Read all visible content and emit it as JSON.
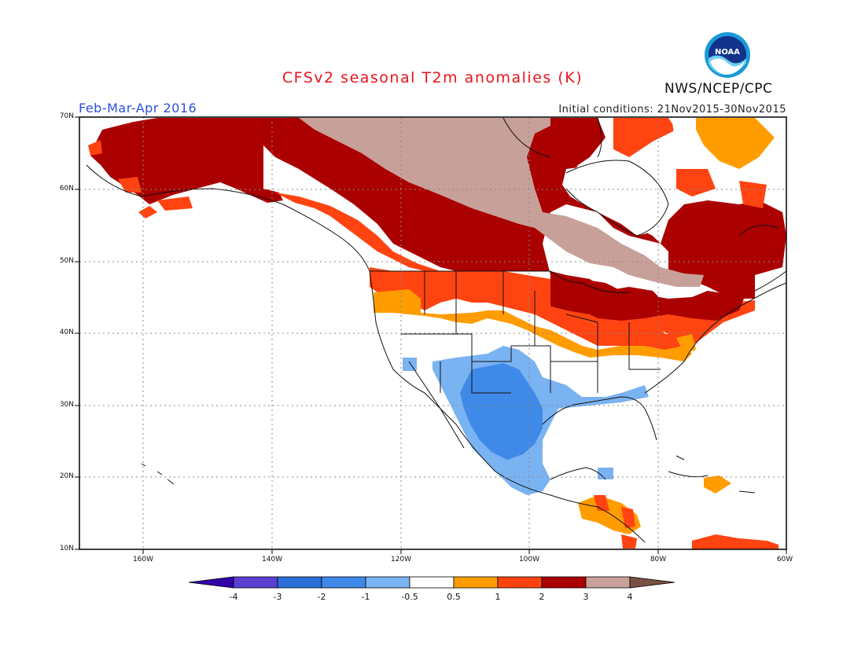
{
  "header": {
    "title": "CFSv2 seasonal T2m anomalies (K)",
    "period": "Feb-Mar-Apr 2016",
    "initial_conditions": "Initial conditions: 21Nov2015-30Nov2015",
    "agency": "NWS/NCEP/CPC",
    "logo_text": "NOAA"
  },
  "axes": {
    "lat_labels": [
      "70N",
      "60N",
      "50N",
      "40N",
      "30N",
      "20N",
      "10N"
    ],
    "lon_labels": [
      "160W",
      "140W",
      "120W",
      "100W",
      "80W",
      "60W"
    ]
  },
  "colorbar": {
    "labels": [
      "-4",
      "-3",
      "-2",
      "-1",
      "-0.5",
      "0.5",
      "1",
      "2",
      "3",
      "4"
    ],
    "colors": [
      "#3300aa",
      "#5a3fd0",
      "#2a6fd8",
      "#3f8ae8",
      "#7ab3f2",
      "#ffffff",
      "#ff9c00",
      "#ff4411",
      "#aa0000",
      "#c8a09a",
      "#7a4f44"
    ]
  },
  "colors": {
    "title": "#e8141c",
    "period": "#2b4fe0",
    "above_0_5": "#ff9c00",
    "above_1": "#ff4411",
    "above_2": "#aa0000",
    "above_3": "#c8a09a",
    "below_0_5": "#7ab3f2",
    "below_1": "#3f8ae8"
  }
}
